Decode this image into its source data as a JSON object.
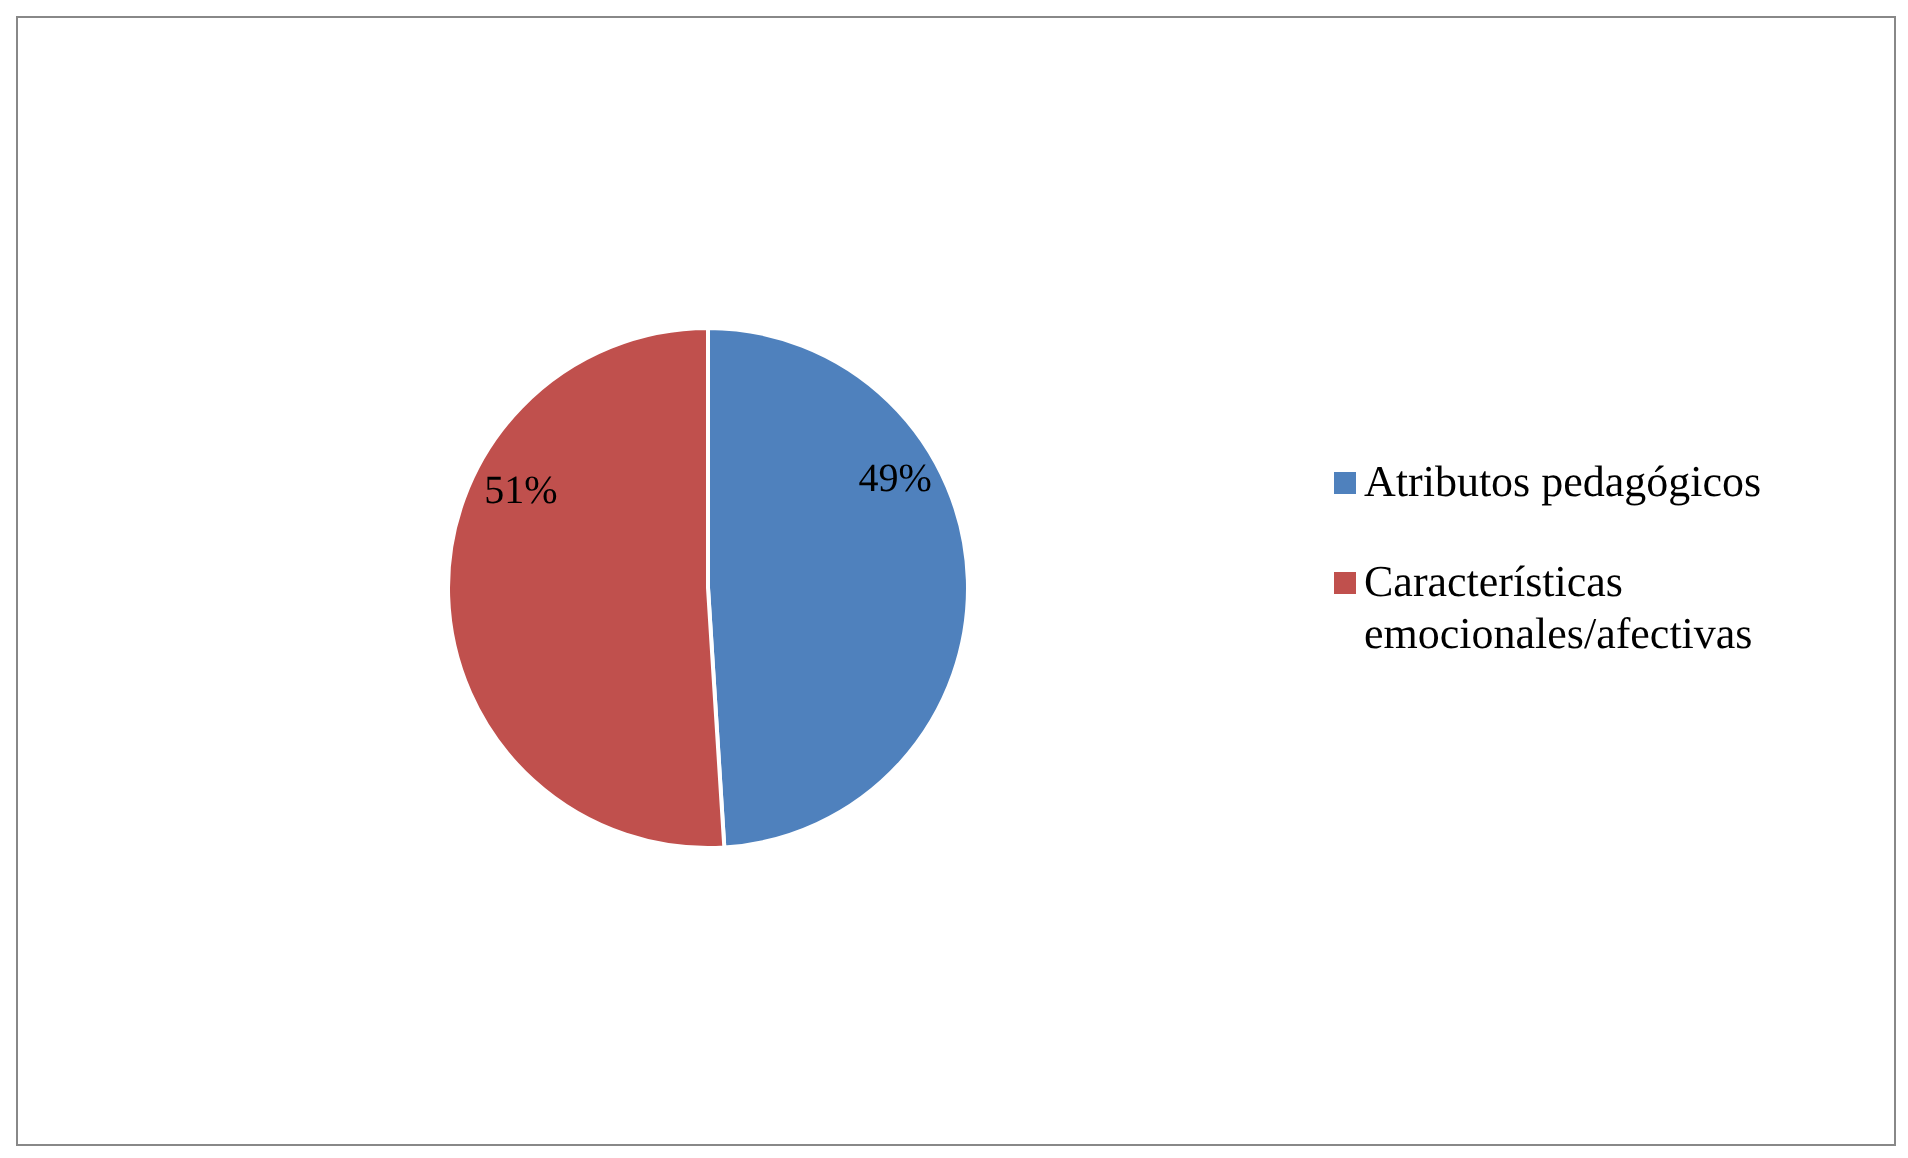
{
  "chart_data": {
    "type": "pie",
    "categories": [
      "Atributos pedagógicos",
      "Características emocionales/afectivas"
    ],
    "values": [
      49,
      51
    ],
    "colors": [
      "#4f81bd",
      "#c0504d"
    ],
    "value_labels": [
      "49%",
      "51%"
    ],
    "legend": "right"
  }
}
